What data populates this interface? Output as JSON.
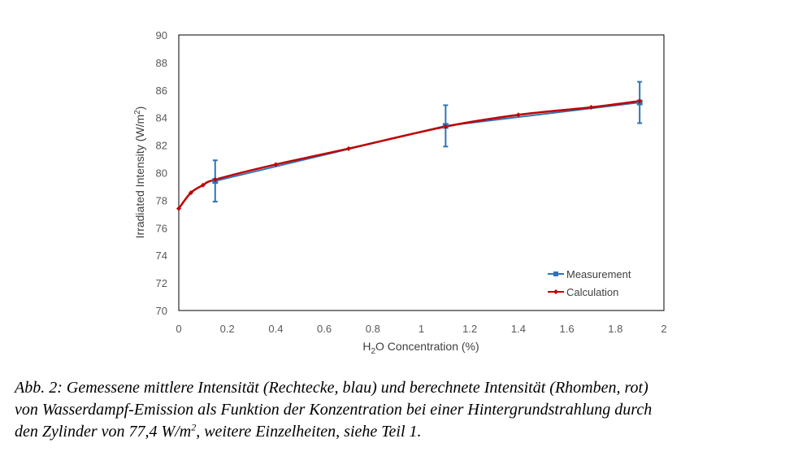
{
  "chart_data": {
    "type": "line",
    "xlabel": {
      "pre": "H",
      "sub": "2",
      "post": "O Concentration (%)"
    },
    "ylabel": {
      "pre": "Irradiated Intensity (W/m",
      "sup": "2",
      "post": ")"
    },
    "xlim": [
      0,
      2
    ],
    "ylim": [
      70,
      90
    ],
    "xticks": [
      "0",
      "0.2",
      "0.4",
      "0.6",
      "0.8",
      "1",
      "1.2",
      "1.4",
      "1.6",
      "1.8",
      "2"
    ],
    "yticks": [
      "70",
      "72",
      "74",
      "76",
      "78",
      "80",
      "82",
      "84",
      "86",
      "88",
      "90"
    ],
    "grid": false,
    "legend_position": "bottom-right",
    "series": [
      {
        "name": "Measurement",
        "color": "#2E75B6",
        "marker": "square",
        "x": [
          0.15,
          1.1,
          1.9
        ],
        "y": [
          79.4,
          83.4,
          85.1
        ],
        "error": [
          1.5,
          1.5,
          1.5
        ]
      },
      {
        "name": "Calculation",
        "color": "#C00000",
        "marker": "diamond",
        "x": [
          0,
          0.05,
          0.1,
          0.15,
          0.4,
          0.7,
          1.1,
          1.4,
          1.7,
          1.9
        ],
        "y": [
          77.4,
          78.55,
          79.1,
          79.5,
          80.6,
          81.75,
          83.35,
          84.2,
          84.75,
          85.2
        ]
      }
    ]
  },
  "caption": {
    "line1": "Abb. 2: Gemessene mittlere Intensität (Rechtecke, blau) und berechnete Intensität (Rhomben, rot)",
    "line2": "von Wasserdampf-Emission als Funktion der Konzentration bei einer Hintergrundstrahlung durch",
    "line3_pre": "den Zylinder von 77,4 W/m",
    "line3_sup": "2",
    "line3_post": ", weitere Einzelheiten, siehe Teil 1."
  }
}
